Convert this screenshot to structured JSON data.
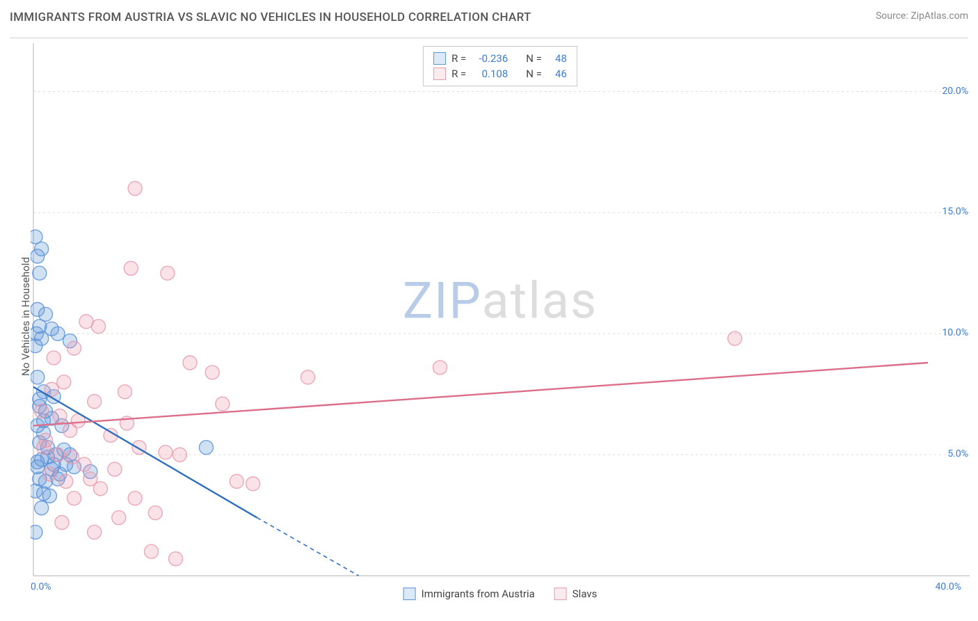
{
  "header": {
    "title": "IMMIGRANTS FROM AUSTRIA VS SLAVIC NO VEHICLES IN HOUSEHOLD CORRELATION CHART",
    "source": "Source: ZipAtlas.com"
  },
  "chart": {
    "type": "scatter",
    "y_axis_label": "No Vehicles in Household",
    "watermark": {
      "part1": "ZIP",
      "part2": "atlas"
    },
    "xlim": [
      0,
      44
    ],
    "ylim": [
      0,
      22
    ],
    "x_ticks": [
      {
        "value": 0,
        "label": "0.0%"
      },
      {
        "value": 40,
        "label": "40.0%"
      }
    ],
    "y_ticks": [
      {
        "value": 5,
        "label": "5.0%"
      },
      {
        "value": 10,
        "label": "10.0%"
      },
      {
        "value": 15,
        "label": "15.0%"
      },
      {
        "value": 20,
        "label": "20.0%"
      }
    ],
    "gridline_color": "#dcdcdc",
    "axis_color": "#c0c0c0",
    "background_color": "#ffffff",
    "tick_label_color": "#3b7dd8",
    "marker_radius": 10,
    "marker_fill_opacity": 0.28,
    "marker_stroke_opacity": 0.85,
    "marker_stroke_width": 1.4,
    "series": [
      {
        "name": "Immigrants from Austria",
        "color": "#5b93d8",
        "line_color": "#2f6fbf",
        "R": "-0.236",
        "N": "48",
        "regression": {
          "x1": 0,
          "y1": 7.8,
          "x2": 11,
          "y2": 2.4,
          "dash_x2": 16,
          "dash_y2": 0
        },
        "points": [
          [
            0.1,
            14.0
          ],
          [
            0.2,
            13.2
          ],
          [
            0.4,
            13.5
          ],
          [
            0.3,
            12.5
          ],
          [
            0.2,
            11.0
          ],
          [
            0.6,
            10.8
          ],
          [
            0.3,
            10.3
          ],
          [
            0.15,
            10.0
          ],
          [
            0.1,
            9.5
          ],
          [
            0.4,
            9.8
          ],
          [
            1.2,
            10.0
          ],
          [
            1.8,
            9.7
          ],
          [
            0.2,
            8.2
          ],
          [
            0.5,
            7.6
          ],
          [
            1.0,
            7.4
          ],
          [
            0.3,
            7.0
          ],
          [
            0.6,
            6.8
          ],
          [
            0.9,
            6.5
          ],
          [
            0.2,
            6.2
          ],
          [
            0.5,
            5.9
          ],
          [
            1.4,
            6.2
          ],
          [
            0.3,
            5.5
          ],
          [
            0.7,
            5.3
          ],
          [
            1.1,
            5.0
          ],
          [
            0.4,
            4.8
          ],
          [
            0.2,
            4.5
          ],
          [
            0.9,
            4.4
          ],
          [
            1.6,
            4.6
          ],
          [
            2.0,
            4.5
          ],
          [
            0.3,
            4.0
          ],
          [
            0.6,
            3.9
          ],
          [
            1.2,
            4.0
          ],
          [
            0.1,
            3.5
          ],
          [
            0.5,
            3.4
          ],
          [
            0.8,
            3.3
          ],
          [
            1.3,
            4.2
          ],
          [
            2.8,
            4.3
          ],
          [
            0.4,
            2.8
          ],
          [
            1.0,
            4.6
          ],
          [
            1.5,
            5.2
          ],
          [
            0.2,
            4.7
          ],
          [
            0.7,
            4.9
          ],
          [
            1.8,
            5.0
          ],
          [
            0.5,
            6.4
          ],
          [
            8.5,
            5.3
          ],
          [
            0.1,
            1.8
          ],
          [
            0.3,
            7.3
          ],
          [
            0.9,
            10.2
          ]
        ]
      },
      {
        "name": "Slavs",
        "color": "#e89aad",
        "line_color": "#dc6e8a",
        "R": "0.108",
        "N": "46",
        "regression": {
          "x1": 0,
          "y1": 6.2,
          "x2": 44,
          "y2": 8.8
        },
        "points": [
          [
            5.0,
            16.0
          ],
          [
            4.8,
            12.7
          ],
          [
            6.6,
            12.5
          ],
          [
            34.5,
            9.8
          ],
          [
            20.0,
            8.6
          ],
          [
            13.5,
            8.2
          ],
          [
            2.6,
            10.5
          ],
          [
            3.2,
            10.3
          ],
          [
            2.0,
            9.4
          ],
          [
            1.0,
            9.0
          ],
          [
            1.5,
            8.0
          ],
          [
            7.7,
            8.8
          ],
          [
            8.8,
            8.4
          ],
          [
            4.5,
            7.6
          ],
          [
            3.0,
            7.2
          ],
          [
            9.3,
            7.1
          ],
          [
            2.2,
            6.4
          ],
          [
            1.8,
            6.0
          ],
          [
            3.8,
            5.8
          ],
          [
            5.2,
            5.3
          ],
          [
            0.5,
            5.3
          ],
          [
            1.2,
            5.0
          ],
          [
            6.5,
            5.1
          ],
          [
            7.2,
            5.0
          ],
          [
            2.5,
            4.6
          ],
          [
            4.0,
            4.4
          ],
          [
            0.8,
            4.2
          ],
          [
            1.6,
            3.9
          ],
          [
            3.3,
            3.6
          ],
          [
            10.0,
            3.9
          ],
          [
            10.8,
            3.8
          ],
          [
            2.0,
            3.2
          ],
          [
            5.0,
            3.2
          ],
          [
            6.0,
            2.6
          ],
          [
            4.2,
            2.4
          ],
          [
            1.4,
            2.2
          ],
          [
            3.0,
            1.8
          ],
          [
            5.8,
            1.0
          ],
          [
            7.0,
            0.7
          ],
          [
            1.9,
            4.9
          ],
          [
            0.4,
            6.8
          ],
          [
            0.9,
            7.7
          ],
          [
            1.3,
            6.6
          ],
          [
            2.8,
            4.0
          ],
          [
            4.6,
            6.3
          ],
          [
            0.6,
            5.6
          ]
        ]
      }
    ],
    "legend_top": {
      "rows": [
        {
          "swatch_color": "#5b93d8",
          "r_label": "R =",
          "r_value": "-0.236",
          "n_label": "N =",
          "n_value": "48"
        },
        {
          "swatch_color": "#e89aad",
          "r_label": "R =",
          "r_value": "0.108",
          "n_label": "N =",
          "n_value": "46"
        }
      ]
    },
    "legend_bottom": [
      {
        "swatch_color": "#5b93d8",
        "label": "Immigrants from Austria"
      },
      {
        "swatch_color": "#e89aad",
        "label": "Slavs"
      }
    ]
  }
}
